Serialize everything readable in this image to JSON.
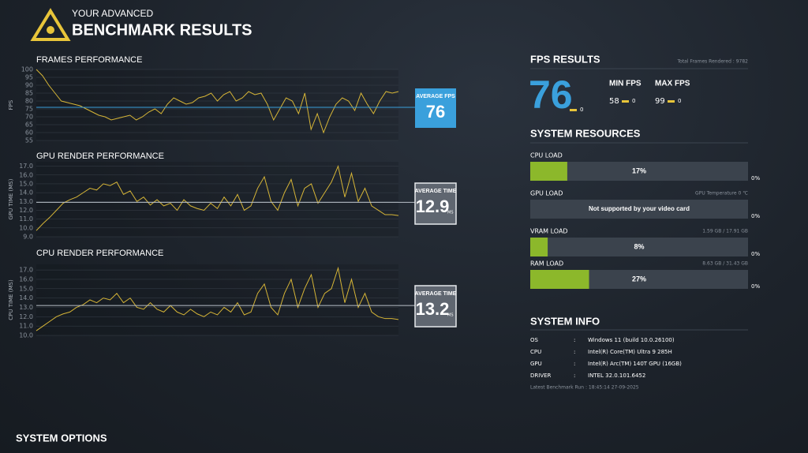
{
  "header": {
    "subtitle": "YOUR ADVANCED",
    "title": "BENCHMARK RESULTS"
  },
  "chart_data": [
    {
      "type": "line",
      "title": "FRAMES PERFORMANCE",
      "y_label": "FPS",
      "color": "#d6b537",
      "values": [
        100,
        96,
        90,
        85,
        80,
        79,
        78,
        77,
        75,
        73,
        71,
        70,
        68,
        69,
        70,
        71,
        68,
        70,
        73,
        75,
        72,
        78,
        82,
        80,
        78,
        79,
        82,
        83,
        85,
        80,
        84,
        86,
        80,
        82,
        86,
        84,
        85,
        78,
        68,
        75,
        82,
        80,
        72,
        85,
        62,
        72,
        60,
        70,
        78,
        82,
        80,
        74,
        85,
        78,
        72,
        80,
        86,
        85,
        86
      ],
      "ylim": [
        55,
        100
      ],
      "yticks": [
        55,
        60,
        65,
        70,
        75,
        80,
        85,
        90,
        95,
        100
      ],
      "grid": true,
      "reference": {
        "label": "AVERAGE FPS",
        "value": 76,
        "color": "#3aa0dc"
      }
    },
    {
      "type": "line",
      "title": "GPU RENDER PERFORMANCE",
      "y_label": "GPU TIME (MS)",
      "color": "#d6b537",
      "values": [
        9.7,
        10.5,
        11.2,
        12,
        12.8,
        13.2,
        13.5,
        14,
        14.5,
        14.3,
        15,
        14.8,
        15.2,
        13.8,
        14.2,
        13,
        13.5,
        12.6,
        13.2,
        12.5,
        12.8,
        12,
        13.2,
        12.5,
        12.2,
        12,
        12.8,
        12.2,
        13.5,
        12.5,
        13.8,
        12,
        12.5,
        14.5,
        15.8,
        13,
        12,
        14,
        15.5,
        12.5,
        14.5,
        15,
        12.8,
        14,
        15.2,
        17,
        13.5,
        16.2,
        13,
        14.5,
        12.5,
        12,
        11.5,
        11.5,
        11.4
      ],
      "ylim": [
        9,
        17.5
      ],
      "yticks": [
        {
          "value": 9,
          "label": "9.0"
        },
        {
          "value": 10,
          "label": "10.0"
        },
        {
          "value": 11,
          "label": "11.0"
        },
        {
          "value": 12,
          "label": "12.0"
        },
        {
          "value": 13,
          "label": "13.0"
        },
        {
          "value": 14,
          "label": "14.0"
        },
        {
          "value": 15,
          "label": "15.0"
        },
        {
          "value": 16,
          "label": "16.0"
        },
        {
          "value": 17,
          "label": "17.0"
        }
      ],
      "grid": true,
      "reference": {
        "label": "AVERAGE TIME",
        "value": 12.9,
        "unit": "MS",
        "color": "#5f6670"
      }
    },
    {
      "type": "line",
      "title": "CPU RENDER PERFORMANCE",
      "y_label": "CPU TIME (MS)",
      "color": "#d6b537",
      "values": [
        10.5,
        11,
        11.5,
        12,
        12.3,
        12.5,
        13,
        13.3,
        13.8,
        13.5,
        14,
        13.8,
        14.5,
        13.5,
        14,
        13,
        12.8,
        13.5,
        12.8,
        12.5,
        13.2,
        12.5,
        12.2,
        12.8,
        12.3,
        12,
        12.5,
        12.2,
        13,
        12.5,
        13.5,
        12.2,
        12.5,
        14.5,
        15.5,
        13,
        12.2,
        14.5,
        16,
        13,
        15,
        16.5,
        13,
        14.5,
        15,
        17.2,
        13.5,
        16,
        13,
        14.5,
        12.5,
        12,
        11.8,
        11.8,
        11.7
      ],
      "ylim": [
        10,
        17.6
      ],
      "yticks": [
        {
          "value": 10,
          "label": "10.0"
        },
        {
          "value": 11,
          "label": "11.0"
        },
        {
          "value": 12,
          "label": "12.0"
        },
        {
          "value": 13,
          "label": "13.0"
        },
        {
          "value": 14,
          "label": "14.0"
        },
        {
          "value": 15,
          "label": "15.0"
        },
        {
          "value": 16,
          "label": "16.0"
        },
        {
          "value": 17,
          "label": "17.0"
        }
      ],
      "grid": true,
      "reference": {
        "label": "AVERAGE TIME",
        "value": 13.2,
        "unit": "MS",
        "color": "#5f6670"
      }
    }
  ],
  "fps_results": {
    "title": "FPS RESULTS",
    "total_frames": "Total Frames Rendered : 9782",
    "average": 76,
    "average_delta": 0,
    "min_label": "MIN FPS",
    "min": 58,
    "min_delta": 0,
    "max_label": "MAX FPS",
    "max": 99,
    "max_delta": 0
  },
  "system_resources": {
    "title": "SYSTEM RESOURCES",
    "color": "#8cb82b",
    "rows": [
      {
        "label": "CPU LOAD",
        "value": 17,
        "value_label": "17%",
        "side": 0,
        "side_label": "0%"
      },
      {
        "label": "GPU LOAD",
        "note": "GPU Temperature 0 ℃",
        "text": "Not supported by your video card",
        "side": 0,
        "side_label": "0%"
      },
      {
        "label": "VRAM LOAD",
        "note": "1.59 GB / 17.91 GB",
        "value": 8,
        "value_label": "8%",
        "side": 0,
        "side_label": "0%"
      },
      {
        "label": "RAM LOAD",
        "note": "8.63 GB / 31.43 GB",
        "value": 27,
        "value_label": "27%",
        "side": 0,
        "side_label": "0%"
      }
    ]
  },
  "system_info": {
    "title": "SYSTEM INFO",
    "rows": [
      [
        "OS",
        ":",
        "Windows 11 (build 10.0.26100)"
      ],
      [
        "CPU",
        ":",
        "Intel(R) Core(TM) Ultra 9 285H"
      ],
      [
        "GPU",
        ":",
        "Intel(R) Arc(TM) 140T GPU (16GB)"
      ],
      [
        "DRIVER",
        ":",
        "INTEL 32.0.101.6452"
      ]
    ],
    "last_run": "Latest Benchmark Run : 18:45:14 27-09-2025"
  },
  "footer": {
    "title": "SYSTEM OPTIONS"
  }
}
